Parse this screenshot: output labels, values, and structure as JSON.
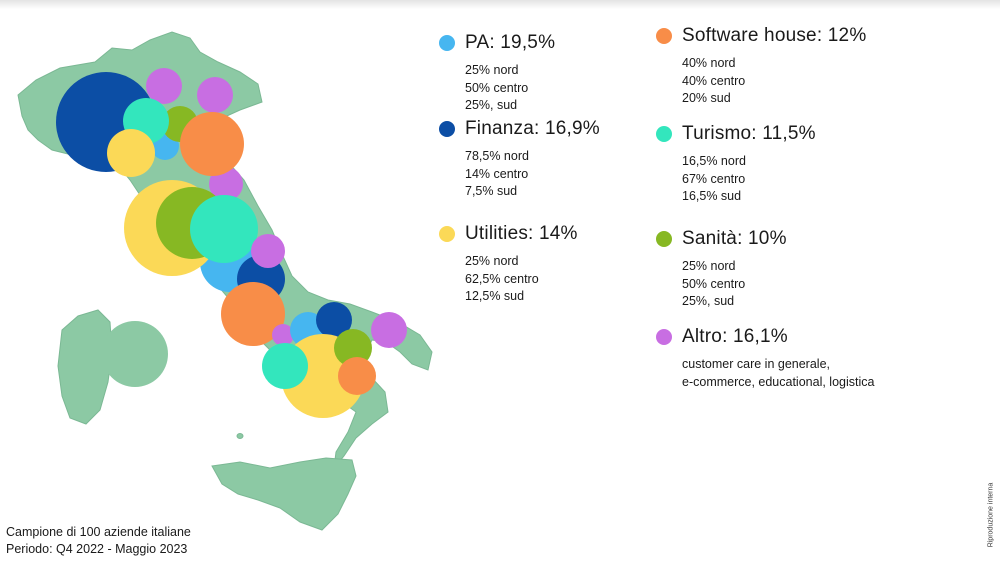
{
  "colors": {
    "land": "#8cc9a4",
    "land_stroke": "#7bb894"
  },
  "legend": [
    {
      "key": "pa",
      "title": "PA: 19,5%",
      "color": "#46b6f0",
      "details": [
        "25% nord",
        "50% centro",
        "25%, sud"
      ]
    },
    {
      "key": "finanza",
      "title": "Finanza: 16,9%",
      "color": "#0c4ea5",
      "details": [
        "78,5% nord",
        "14% centro",
        "7,5% sud"
      ]
    },
    {
      "key": "utilities",
      "title": "Utilities: 14%",
      "color": "#fbd957",
      "details": [
        "25% nord",
        "62,5% centro",
        "12,5% sud"
      ]
    },
    {
      "key": "software",
      "title": "Software house: 12%",
      "color": "#f88d48",
      "details": [
        "40% nord",
        "40% centro",
        "20% sud"
      ]
    },
    {
      "key": "turismo",
      "title": "Turismo: 11,5%",
      "color": "#33e6bd",
      "details": [
        "16,5% nord",
        "67% centro",
        "16,5% sud"
      ]
    },
    {
      "key": "sanita",
      "title": "Sanità: 10%",
      "color": "#87b823",
      "details": [
        "25% nord",
        "50% centro",
        "25%, sud"
      ]
    },
    {
      "key": "altro",
      "title": "Altro: 16,1%",
      "color": "#c86ee2",
      "details": [
        "customer care in generale,",
        "e-commerce, educational, logistica"
      ]
    }
  ],
  "caption": {
    "line1": "Campione di 100 aziende italiane",
    "line2": "Periodo: Q4 2022 - Maggio 2023"
  },
  "side_note": "Riproduzione interna"
}
